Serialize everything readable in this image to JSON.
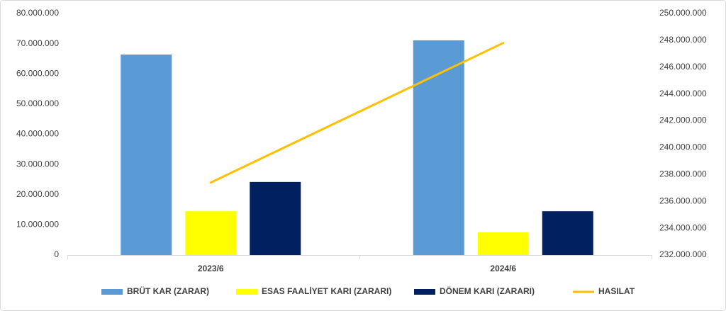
{
  "chart_data": {
    "type": "bar",
    "categories": [
      "2023/6",
      "2024/6"
    ],
    "series": [
      {
        "name": "BRÜT KAR (ZARAR)",
        "color": "#5b9bd5",
        "values": [
          66400000,
          71100000
        ]
      },
      {
        "name": "ESAS FAALİYET KARI (ZARARI)",
        "color": "#ffff00",
        "values": [
          14500000,
          7500000
        ]
      },
      {
        "name": "DÖNEM KARI (ZARARI)",
        "color": "#002060",
        "values": [
          24200000,
          14500000
        ]
      },
      {
        "name": "HASILAT",
        "color": "#ffc000",
        "type": "line",
        "axis": "y2",
        "values": [
          237400000,
          247800000
        ]
      }
    ],
    "ylim": [
      0,
      80000000
    ],
    "yticks": [
      0,
      {
        "value": 10000000,
        "label": "10.000.000"
      },
      {
        "value": 20000000,
        "label": "20.000.000"
      },
      {
        "value": 30000000,
        "label": "30.000.000"
      },
      {
        "value": 40000000,
        "label": "40.000.000"
      },
      {
        "value": 50000000,
        "label": "50.000.000"
      },
      {
        "value": 60000000,
        "label": "60.000.000"
      },
      {
        "value": 70000000,
        "label": "70.000.000"
      },
      {
        "value": 80000000,
        "label": "80.000.000"
      }
    ],
    "y2lim": [
      232000000,
      250000000
    ],
    "y2ticks": [
      {
        "value": 232000000,
        "label": "232.000.000"
      },
      {
        "value": 234000000,
        "label": "234.000.000"
      },
      {
        "value": 236000000,
        "label": "236.000.000"
      },
      {
        "value": 238000000,
        "label": "238.000.000"
      },
      {
        "value": 240000000,
        "label": "240.000.000"
      },
      {
        "value": 242000000,
        "label": "242.000.000"
      },
      {
        "value": 244000000,
        "label": "244.000.000"
      },
      {
        "value": 246000000,
        "label": "246.000.000"
      },
      {
        "value": 248000000,
        "label": "248.000.000"
      },
      {
        "value": 250000000,
        "label": "250.000.000"
      }
    ],
    "legend": "bottom"
  }
}
